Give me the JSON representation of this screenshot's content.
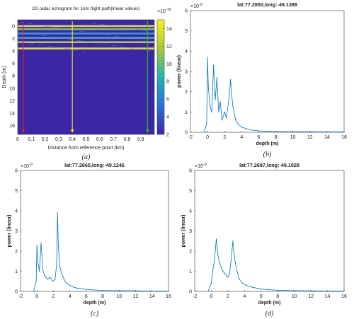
{
  "colors": {
    "heat_low": "#3b27a6",
    "heat_high": "#f9f114",
    "line_series": "#0072bd",
    "marker_red": "#e8201e",
    "marker_yellow": "#f0e020",
    "marker_green": "#22c41c"
  },
  "chart_data": [
    {
      "id": "a",
      "type": "heatmap",
      "caption": "(a)",
      "title": "2D radar echogram for 1km flight path(linear values)",
      "xlabel": "Distance from reference point (km)",
      "ylabel": "Depth (m)",
      "xlim": [
        0,
        1.0
      ],
      "ylim": [
        17.4,
        -1.0
      ],
      "y_reversed": true,
      "xticks": [
        0,
        0.1,
        0.2,
        0.3,
        0.4,
        0.5,
        0.6,
        0.7,
        0.8,
        0.9
      ],
      "xtick_labels": [
        "0",
        "0.1",
        "0.2",
        "0.3",
        "0.4",
        "0.5",
        "0.6",
        "0.7",
        "0.8",
        "0.9"
      ],
      "yticks": [
        0,
        2,
        4,
        6,
        8,
        10,
        12,
        14,
        16
      ],
      "colorbar": {
        "exponent": "×10",
        "exponent_power": "-10",
        "range": [
          2,
          15
        ],
        "ticks": [
          2,
          4,
          6,
          8,
          10,
          12,
          14
        ],
        "tick_labels": [
          "2",
          "4",
          "6",
          "8",
          "10",
          "12",
          "14"
        ]
      },
      "bright_layers_depth_m": [
        0,
        0.5,
        1.2,
        1.9,
        2.6,
        3.6
      ],
      "profile_markers": [
        {
          "x": 0.04,
          "color": "red"
        },
        {
          "x": 0.4,
          "color": "yellow"
        },
        {
          "x": 0.95,
          "color": "green"
        }
      ]
    },
    {
      "id": "b",
      "type": "line",
      "caption": "(b)",
      "title": "lat:77.2650,long:-49.1388",
      "xlabel": "depth (m)",
      "ylabel": "power (linear)",
      "y_exponent": "×10",
      "y_exponent_power": "-9",
      "xlim": [
        -2,
        16
      ],
      "ylim": [
        0,
        6
      ],
      "xticks": [
        -2,
        0,
        2,
        4,
        6,
        8,
        10,
        12,
        14,
        16
      ],
      "yticks": [
        0,
        1,
        2,
        3,
        4,
        5,
        6
      ],
      "x": [
        -0.4,
        -0.1,
        0.0,
        0.1,
        0.3,
        0.5,
        0.7,
        0.9,
        1.1,
        1.3,
        1.5,
        1.7,
        2.0,
        2.2,
        2.5,
        2.7,
        2.8,
        3.0,
        3.3,
        3.6,
        4.0,
        4.5,
        5.0,
        6.0,
        7.0,
        8.0,
        10.0,
        12.0,
        14.0,
        16.0
      ],
      "y": [
        0.0,
        0.4,
        3.7,
        2.2,
        1.3,
        1.0,
        3.3,
        1.6,
        2.7,
        1.0,
        1.5,
        0.6,
        1.0,
        0.7,
        1.6,
        2.6,
        1.9,
        1.2,
        0.6,
        0.4,
        0.25,
        0.18,
        0.12,
        0.07,
        0.05,
        0.04,
        0.03,
        0.03,
        0.02,
        0.02
      ]
    },
    {
      "id": "c",
      "type": "line",
      "caption": "(c)",
      "title": "lat:77.2665,long:-49.1246",
      "xlabel": "depth (m)",
      "ylabel": "power (linear)",
      "y_exponent": "×10",
      "y_exponent_power": "-9",
      "xlim": [
        -2,
        16
      ],
      "ylim": [
        0,
        6
      ],
      "xticks": [
        -2,
        0,
        2,
        4,
        6,
        8,
        10,
        12,
        14,
        16
      ],
      "yticks": [
        0,
        1,
        2,
        3,
        4,
        5,
        6
      ],
      "x": [
        -0.4,
        -0.1,
        0.0,
        0.1,
        0.3,
        0.5,
        0.7,
        0.9,
        1.1,
        1.3,
        1.6,
        1.9,
        2.2,
        2.4,
        2.5,
        2.6,
        2.8,
        3.0,
        3.3,
        3.6,
        4.0,
        4.5,
        5.0,
        6.0,
        7.0,
        8.0,
        10.0,
        12.0,
        14.0,
        16.0
      ],
      "y": [
        0.0,
        0.5,
        2.3,
        1.5,
        1.0,
        2.4,
        1.1,
        0.8,
        0.7,
        0.6,
        0.7,
        0.5,
        0.6,
        1.4,
        3.9,
        2.2,
        1.2,
        0.9,
        0.6,
        0.4,
        0.3,
        0.2,
        0.15,
        0.1,
        0.07,
        0.05,
        0.04,
        0.03,
        0.02,
        0.02
      ]
    },
    {
      "id": "d",
      "type": "line",
      "caption": "(d)",
      "title": "lat:77.2687,long:-49.1028",
      "xlabel": "depth (m)",
      "ylabel": "power (linear)",
      "y_exponent": "×10",
      "y_exponent_power": "-9",
      "xlim": [
        -2,
        16
      ],
      "ylim": [
        0,
        6
      ],
      "xticks": [
        -2,
        0,
        2,
        4,
        6,
        8,
        10,
        12,
        14,
        16
      ],
      "yticks": [
        0,
        1,
        2,
        3,
        4,
        5,
        6
      ],
      "x": [
        -0.4,
        0.0,
        0.2,
        0.4,
        0.6,
        0.8,
        1.0,
        1.2,
        1.4,
        1.6,
        1.8,
        2.0,
        2.2,
        2.4,
        2.6,
        2.7,
        2.9,
        3.1,
        3.4,
        3.8,
        4.2,
        5.0,
        6.0,
        7.0,
        8.0,
        10.0,
        12.0,
        14.0,
        16.0
      ],
      "y": [
        0.0,
        0.4,
        1.1,
        1.6,
        2.6,
        1.8,
        1.4,
        1.2,
        1.0,
        0.9,
        0.8,
        0.7,
        0.9,
        1.6,
        2.5,
        2.0,
        1.4,
        1.0,
        0.6,
        0.4,
        0.3,
        0.2,
        0.12,
        0.08,
        0.06,
        0.04,
        0.03,
        0.02,
        0.02
      ]
    }
  ]
}
